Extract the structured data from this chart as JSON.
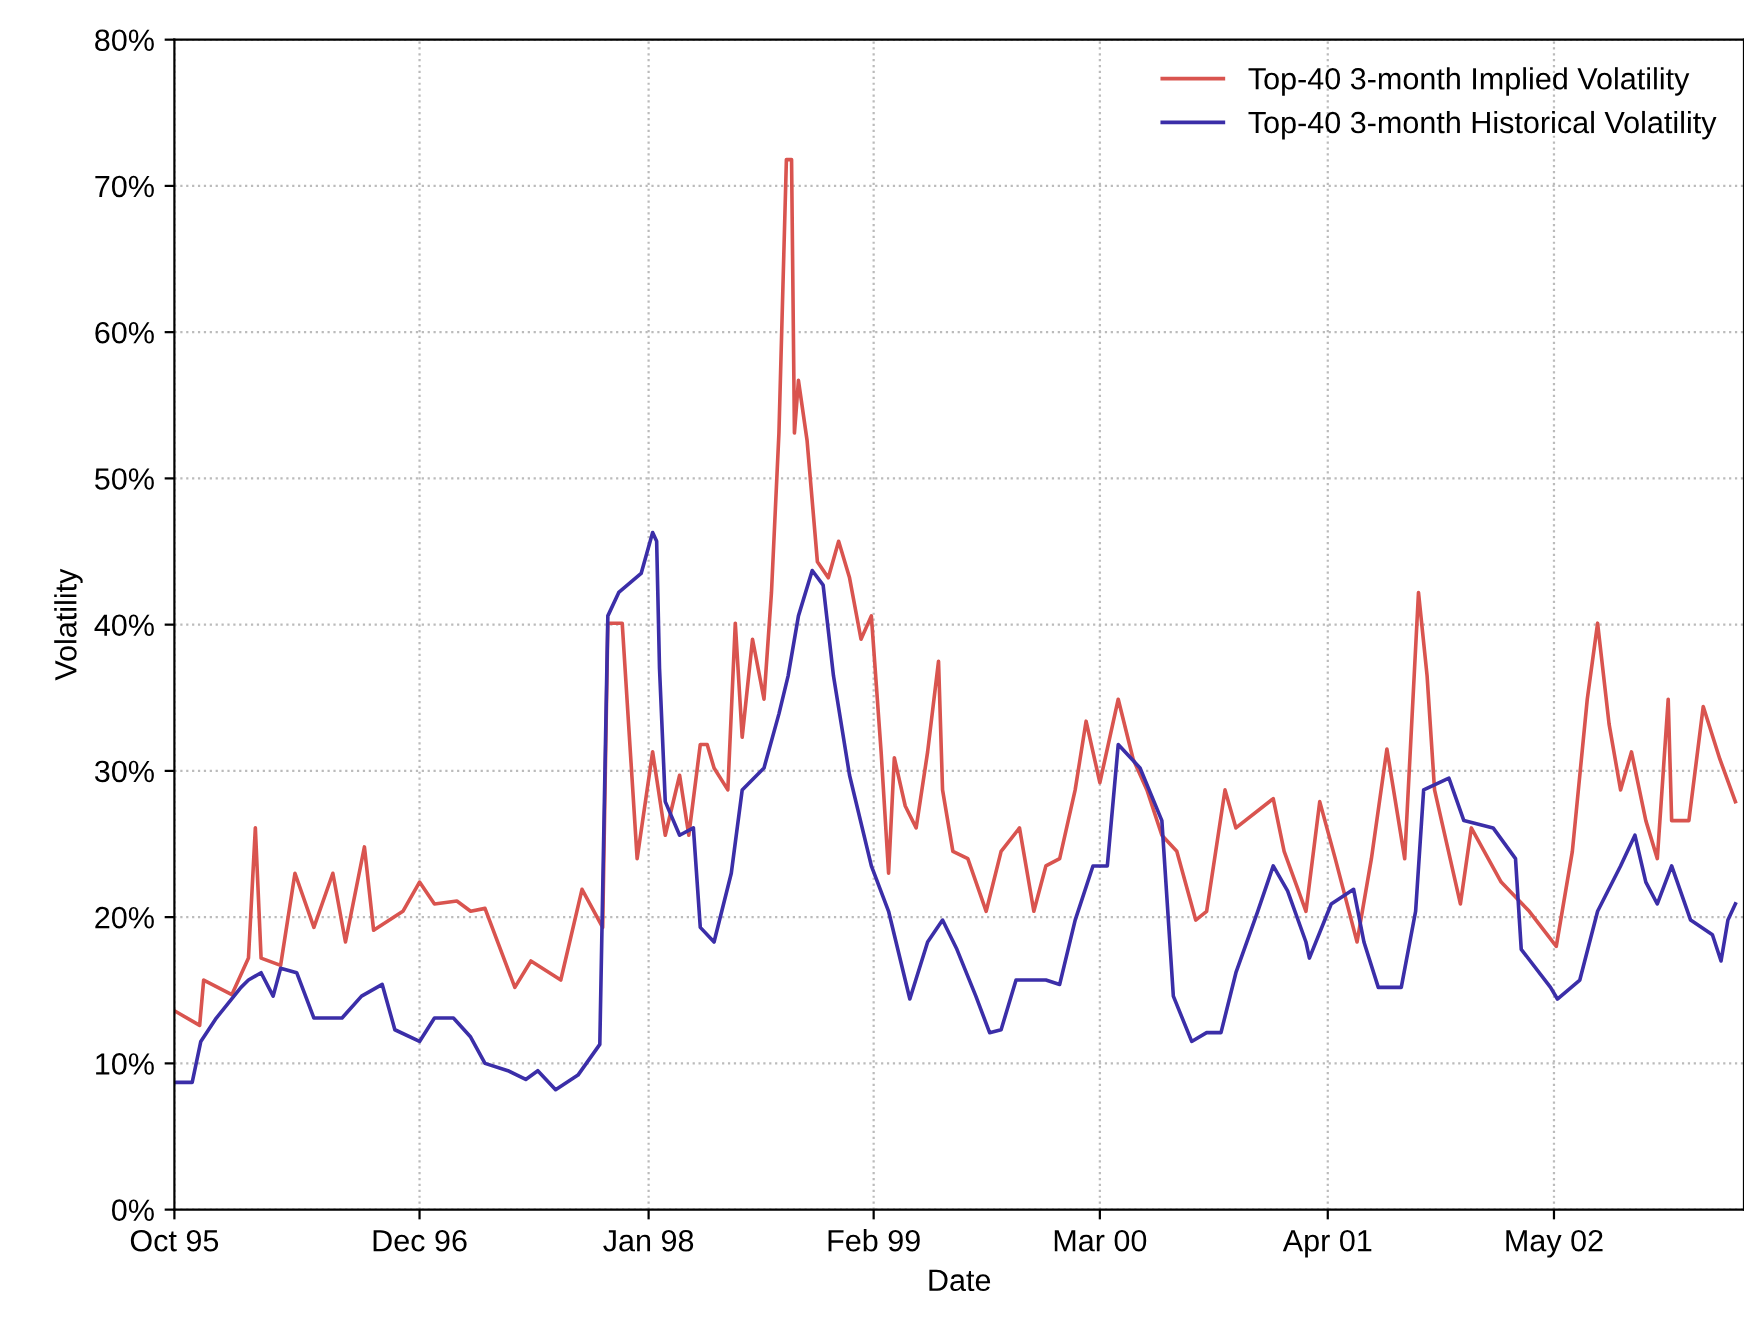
{
  "chart_data": {
    "type": "line",
    "xlabel": "Date",
    "ylabel": "Volatility",
    "xlim": [
      "1995-10-02",
      "2003-03-28"
    ],
    "xticks": [
      {
        "value": "1995-10-02",
        "label": "Oct 95"
      },
      {
        "value": "1996-12-02",
        "label": "Dec 96"
      },
      {
        "value": "1998-01-05",
        "label": "Jan 98"
      },
      {
        "value": "1999-02-01",
        "label": "Feb 99"
      },
      {
        "value": "2000-03-01",
        "label": "Mar 00"
      },
      {
        "value": "2001-04-02",
        "label": "Apr 01"
      },
      {
        "value": "2002-05-01",
        "label": "May 02"
      }
    ],
    "ylim": [
      0,
      80
    ],
    "yticks": [
      {
        "value": 0,
        "label": "0%"
      },
      {
        "value": 10,
        "label": "10%"
      },
      {
        "value": 20,
        "label": "20%"
      },
      {
        "value": 30,
        "label": "30%"
      },
      {
        "value": 40,
        "label": "40%"
      },
      {
        "value": 50,
        "label": "50%"
      },
      {
        "value": 60,
        "label": "60%"
      },
      {
        "value": 70,
        "label": "70%"
      },
      {
        "value": 80,
        "label": "80%"
      }
    ],
    "grid": true,
    "legend": "top right",
    "line_style": "solid",
    "series": [
      {
        "name": "Top-40 3-month Implied Volatility",
        "color": "#d9544f",
        "x": [
          "1995-10-02",
          "1995-11-15",
          "1995-11-22",
          "1996-01-10",
          "1996-02-08",
          "1996-02-20",
          "1996-03-01",
          "1996-04-04",
          "1996-04-29",
          "1996-06-01",
          "1996-07-04",
          "1996-07-26",
          "1996-08-28",
          "1996-09-13",
          "1996-11-03",
          "1996-12-02",
          "1996-12-28",
          "1997-02-05",
          "1997-03-01",
          "1997-03-26",
          "1997-05-17",
          "1997-06-14",
          "1997-08-05",
          "1997-09-11",
          "1997-10-17",
          "1997-10-26",
          "1997-11-20",
          "1997-12-16",
          "1998-01-12",
          "1998-02-03",
          "1998-02-28",
          "1998-03-16",
          "1998-04-05",
          "1998-04-17",
          "1998-04-29",
          "1998-05-23",
          "1998-06-05",
          "1998-06-17",
          "1998-07-05",
          "1998-07-25",
          "1998-08-07",
          "1998-08-20",
          "1998-09-02",
          "1998-09-11",
          "1998-09-16",
          "1998-09-23",
          "1998-10-08",
          "1998-10-26",
          "1998-11-14",
          "1998-12-02",
          "1998-12-21",
          "1999-01-10",
          "1999-01-28",
          "1999-02-14",
          "1999-02-27",
          "1999-03-09",
          "1999-03-28",
          "1999-04-16",
          "1999-05-06",
          "1999-05-25",
          "1999-06-01",
          "1999-06-19",
          "1999-07-15",
          "1999-08-16",
          "1999-09-11",
          "1999-10-13",
          "1999-11-07",
          "1999-11-28",
          "1999-12-22",
          "2000-01-18",
          "2000-02-06",
          "2000-03-01",
          "2000-04-02",
          "2000-04-28",
          "2000-05-22",
          "2000-06-17",
          "2000-07-13",
          "2000-08-15",
          "2000-09-03",
          "2000-10-05",
          "2000-10-24",
          "2000-12-28",
          "2001-01-16",
          "2001-02-23",
          "2001-03-19",
          "2001-04-15",
          "2001-05-23",
          "2001-06-17",
          "2001-07-14",
          "2001-08-14",
          "2001-09-07",
          "2001-09-22",
          "2001-10-05",
          "2001-11-19",
          "2001-12-08",
          "2002-01-29",
          "2002-03-19",
          "2002-05-05",
          "2002-06-02",
          "2002-06-28",
          "2002-07-16",
          "2002-08-05",
          "2002-08-25",
          "2002-09-13",
          "2002-10-08",
          "2002-10-28",
          "2002-11-16",
          "2002-11-22",
          "2002-12-22",
          "2003-01-16",
          "2003-02-14",
          "2003-03-13"
        ],
        "values": [
          13.6,
          12.6,
          15.7,
          14.7,
          17.2,
          26.1,
          17.2,
          16.7,
          23,
          19.3,
          23,
          18.3,
          24.8,
          19.1,
          20.4,
          22.4,
          20.9,
          21.1,
          20.4,
          20.6,
          15.2,
          17,
          15.7,
          21.9,
          19.3,
          40.1,
          40.1,
          24,
          31.3,
          25.6,
          29.7,
          25.6,
          31.8,
          31.8,
          30.2,
          28.7,
          40.1,
          32.3,
          39,
          34.9,
          42.2,
          53.1,
          71.8,
          71.8,
          53.1,
          56.7,
          52.6,
          44.3,
          43.2,
          45.7,
          43.2,
          39,
          40.6,
          31.3,
          23,
          30.9,
          27.6,
          26.1,
          31.3,
          37.5,
          28.7,
          24.5,
          24,
          20.4,
          24.5,
          26.1,
          20.4,
          23.5,
          24,
          28.7,
          33.4,
          29.2,
          34.9,
          30.8,
          28.7,
          25.6,
          24.5,
          19.8,
          20.4,
          28.7,
          26.1,
          28.1,
          24.5,
          20.4,
          27.9,
          24,
          18.3,
          24,
          31.5,
          24,
          42.2,
          36.5,
          28.7,
          20.9,
          26.1,
          22.4,
          20.4,
          18,
          24.5,
          34.9,
          40.1,
          33.2,
          28.7,
          31.3,
          26.6,
          24,
          34.9,
          26.6,
          26.6,
          34.4,
          30.8,
          27.9
        ]
      },
      {
        "name": "Top-40 3-month Historical Volatility",
        "color": "#3b2ea8",
        "x": [
          "1995-10-02",
          "1995-11-02",
          "1995-11-17",
          "1995-12-14",
          "1996-01-26",
          "1996-02-08",
          "1996-03-01",
          "1996-03-22",
          "1996-04-04",
          "1996-05-02",
          "1996-06-01",
          "1996-06-29",
          "1996-07-20",
          "1996-08-23",
          "1996-09-28",
          "1996-10-20",
          "1996-12-02",
          "1996-12-28",
          "1997-01-30",
          "1997-03-01",
          "1997-03-26",
          "1997-05-05",
          "1997-06-05",
          "1997-06-26",
          "1997-07-27",
          "1997-09-04",
          "1997-10-12",
          "1997-10-26",
          "1997-11-14",
          "1997-12-23",
          "1998-01-12",
          "1998-01-19",
          "1998-01-24",
          "1998-02-03",
          "1998-02-28",
          "1998-03-24",
          "1998-04-05",
          "1998-04-29",
          "1998-05-29",
          "1998-06-17",
          "1998-07-25",
          "1998-08-20",
          "1998-09-05",
          "1998-09-23",
          "1998-10-17",
          "1998-11-05",
          "1998-11-23",
          "1998-12-21",
          "1999-01-28",
          "1999-02-27",
          "1999-04-05",
          "1999-05-06",
          "1999-06-01",
          "1999-06-26",
          "1999-07-29",
          "1999-08-22",
          "1999-09-11",
          "1999-10-07",
          "1999-11-28",
          "1999-12-22",
          "2000-01-18",
          "2000-02-18",
          "2000-03-14",
          "2000-04-02",
          "2000-05-10",
          "2000-06-17",
          "2000-07-07",
          "2000-08-08",
          "2000-09-03",
          "2000-09-28",
          "2000-10-24",
          "2000-12-01",
          "2000-12-28",
          "2001-01-22",
          "2001-02-23",
          "2001-03-01",
          "2001-04-08",
          "2001-05-17",
          "2001-06-04",
          "2001-06-29",
          "2001-08-08",
          "2001-09-02",
          "2001-09-16",
          "2001-10-30",
          "2001-11-25",
          "2002-01-15",
          "2002-02-23",
          "2002-03-05",
          "2002-04-25",
          "2002-05-07",
          "2002-06-15",
          "2002-07-16",
          "2002-08-25",
          "2002-09-19",
          "2002-10-08",
          "2002-10-28",
          "2002-11-22",
          "2002-12-25",
          "2003-02-01",
          "2003-02-16",
          "2003-02-28",
          "2003-03-13"
        ],
        "values": [
          8.7,
          8.7,
          11.5,
          13.1,
          15.2,
          15.7,
          16.2,
          14.6,
          16.5,
          16.2,
          13.1,
          13.1,
          13.1,
          14.6,
          15.4,
          12.3,
          11.5,
          13.1,
          13.1,
          11.8,
          10,
          9.5,
          8.9,
          9.5,
          8.2,
          9.2,
          11.3,
          40.6,
          42.2,
          43.5,
          46.3,
          45.7,
          37,
          27.9,
          25.6,
          26.1,
          19.3,
          18.3,
          23,
          28.7,
          30.2,
          33.9,
          36.5,
          40.6,
          43.7,
          42.7,
          36.5,
          29.7,
          23.5,
          20.4,
          14.4,
          18.3,
          19.8,
          17.8,
          14.6,
          12.1,
          12.3,
          15.7,
          15.7,
          15.4,
          19.8,
          23.5,
          23.5,
          31.8,
          30.2,
          26.6,
          14.6,
          11.5,
          12.1,
          12.1,
          16.2,
          20.4,
          23.5,
          21.8,
          18.3,
          17.2,
          20.9,
          21.9,
          18.3,
          15.2,
          15.2,
          20.4,
          28.7,
          29.5,
          26.6,
          26.1,
          24,
          17.8,
          15.2,
          14.4,
          15.7,
          20.4,
          23.5,
          25.6,
          22.4,
          20.9,
          23.5,
          19.8,
          18.8,
          17,
          19.8,
          20.9
        ]
      }
    ]
  }
}
